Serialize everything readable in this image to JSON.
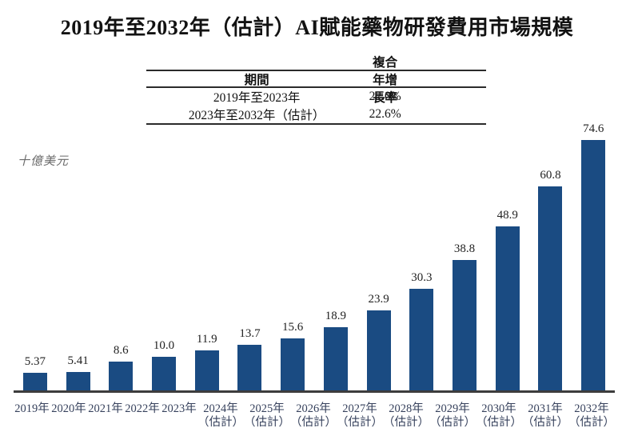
{
  "title": "2019年至2032年（估計）AI賦能藥物研發費用市場規模",
  "cagr_table": {
    "col_period": "期間",
    "col_cagr": "複合年增長率",
    "rows": [
      {
        "period": "2019年至2023年",
        "cagr": "22.0%"
      },
      {
        "period": "2023年至2032年（估計）",
        "cagr": "22.6%"
      }
    ]
  },
  "unit_label": "十億美元",
  "chart_data": {
    "type": "bar",
    "title": "2019年至2032年（估計）AI賦能藥物研發費用市場規模",
    "ylabel": "十億美元",
    "ylim": [
      0,
      80
    ],
    "grid": false,
    "legend": null,
    "bar_color": "#1a4b82",
    "values": [
      5.37,
      5.41,
      8.6,
      10.0,
      11.9,
      13.7,
      15.6,
      18.9,
      23.9,
      30.3,
      38.8,
      48.9,
      60.8,
      74.6
    ],
    "bars": [
      {
        "label": "2019年",
        "sublabel": "",
        "value": 5.37,
        "display": "5.37"
      },
      {
        "label": "2020年",
        "sublabel": "",
        "value": 5.41,
        "display": "5.41"
      },
      {
        "label": "2021年",
        "sublabel": "",
        "value": 8.6,
        "display": "8.6"
      },
      {
        "label": "2022年",
        "sublabel": "",
        "value": 10.0,
        "display": "10.0"
      },
      {
        "label": "2023年",
        "sublabel": "",
        "value": 11.9,
        "display": "11.9"
      },
      {
        "label": "2024年",
        "sublabel": "（估計）",
        "value": 13.7,
        "display": "13.7"
      },
      {
        "label": "2025年",
        "sublabel": "（估計）",
        "value": 15.6,
        "display": "15.6"
      },
      {
        "label": "2026年",
        "sublabel": "（估計）",
        "value": 18.9,
        "display": "18.9"
      },
      {
        "label": "2027年",
        "sublabel": "（估計）",
        "value": 23.9,
        "display": "23.9"
      },
      {
        "label": "2028年",
        "sublabel": "（估計）",
        "value": 30.3,
        "display": "30.3"
      },
      {
        "label": "2029年",
        "sublabel": "（估計）",
        "value": 38.8,
        "display": "38.8"
      },
      {
        "label": "2030年",
        "sublabel": "（估計）",
        "value": 48.9,
        "display": "48.9"
      },
      {
        "label": "2031年",
        "sublabel": "（估計）",
        "value": 60.8,
        "display": "60.8"
      },
      {
        "label": "2032年",
        "sublabel": "（估計）",
        "value": 74.6,
        "display": "74.6"
      }
    ]
  }
}
